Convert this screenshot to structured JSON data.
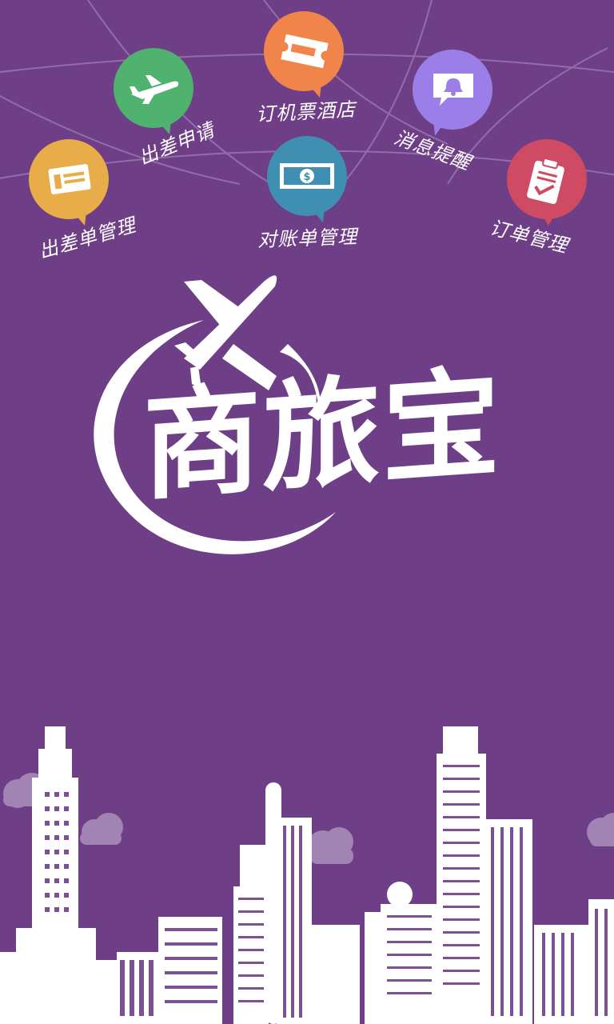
{
  "app": {
    "brand_name": "商旅宝"
  },
  "features": [
    {
      "id": "trip-order",
      "label": "出差单管理",
      "icon": "ticket-card-icon",
      "color": "#e8ad49"
    },
    {
      "id": "trip-apply",
      "label": "出差申请",
      "icon": "airplane-icon",
      "color": "#4fb26f"
    },
    {
      "id": "book",
      "label": "订机票酒店",
      "icon": "ticket-icon",
      "color": "#f0844a"
    },
    {
      "id": "reconcile",
      "label": "对账单管理",
      "icon": "money-bill-icon",
      "color": "#3f8fb2"
    },
    {
      "id": "notify",
      "label": "消息提醒",
      "icon": "bell-message-icon",
      "color": "#9b7ee8"
    },
    {
      "id": "orders",
      "label": "订单管理",
      "icon": "clipboard-check-icon",
      "color": "#cf4a63"
    }
  ],
  "colors": {
    "background": "#6e3f87",
    "foreground": "#ffffff",
    "cloud": "#b39bc2"
  }
}
